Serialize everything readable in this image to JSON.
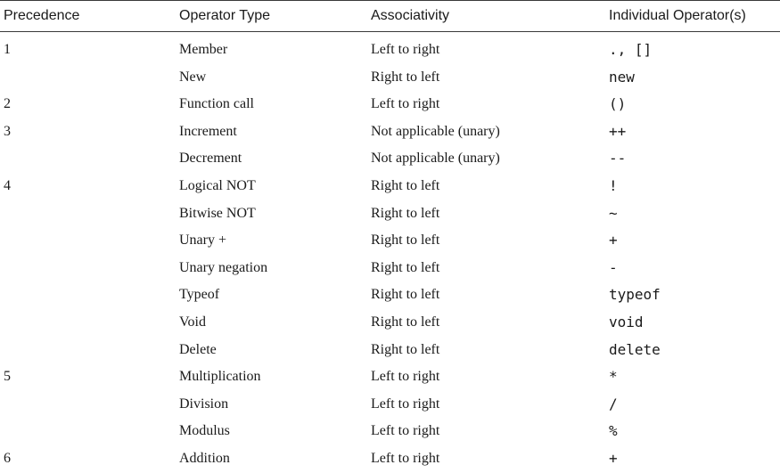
{
  "table": {
    "headers": [
      "Precedence",
      "Operator Type",
      "Associativity",
      "Individual Operator(s)"
    ],
    "rows": [
      {
        "precedence": "1",
        "type": "Member",
        "assoc": "Left to right",
        "ops": "., []"
      },
      {
        "precedence": "",
        "type": "New",
        "assoc": "Right to left",
        "ops": "new"
      },
      {
        "precedence": "2",
        "type": "Function call",
        "assoc": "Left to right",
        "ops": "()"
      },
      {
        "precedence": "3",
        "type": "Increment",
        "assoc": "Not applicable (unary)",
        "ops": "++"
      },
      {
        "precedence": "",
        "type": "Decrement",
        "assoc": "Not applicable (unary)",
        "ops": "--"
      },
      {
        "precedence": "4",
        "type": "Logical NOT",
        "assoc": "Right to left",
        "ops": "!"
      },
      {
        "precedence": "",
        "type": "Bitwise NOT",
        "assoc": "Right to left",
        "ops": "~"
      },
      {
        "precedence": "",
        "type": "Unary +",
        "assoc": "Right to left",
        "ops": "+"
      },
      {
        "precedence": "",
        "type": "Unary negation",
        "assoc": "Right to left",
        "ops": "-"
      },
      {
        "precedence": "",
        "type": "Typeof",
        "assoc": "Right to left",
        "ops": "typeof"
      },
      {
        "precedence": "",
        "type": "Void",
        "assoc": "Right to left",
        "ops": "void"
      },
      {
        "precedence": "",
        "type": "Delete",
        "assoc": "Right to left",
        "ops": "delete"
      },
      {
        "precedence": "5",
        "type": "Multiplication",
        "assoc": "Left to right",
        "ops": "*"
      },
      {
        "precedence": "",
        "type": "Division",
        "assoc": "Left to right",
        "ops": "/"
      },
      {
        "precedence": "",
        "type": "Modulus",
        "assoc": "Left to right",
        "ops": "%"
      },
      {
        "precedence": "6",
        "type": "Addition",
        "assoc": "Left to right",
        "ops": "+"
      }
    ]
  }
}
